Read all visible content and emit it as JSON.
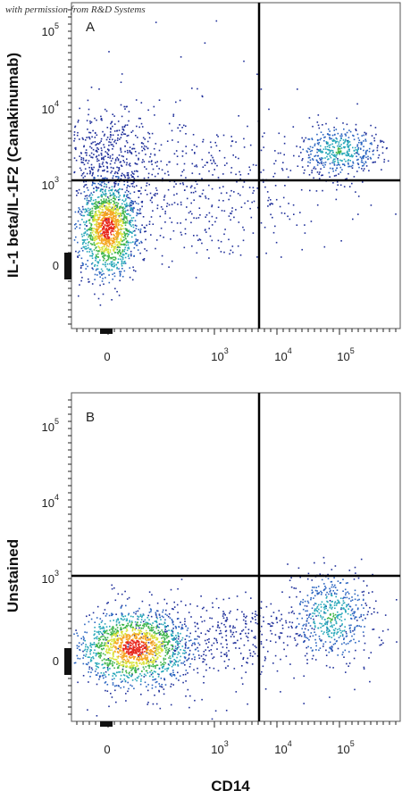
{
  "watermark": "with permission from R&D Systems",
  "x_axis_label": "CD14",
  "panels": [
    {
      "label": "A",
      "y_axis_label": "IL-1 beta/IL-1F2 (Canakinumab)",
      "y_ticks": [
        {
          "base": "10",
          "exp": "5"
        },
        {
          "base": "10",
          "exp": "4"
        },
        {
          "base": "10",
          "exp": "3"
        },
        {
          "base": "0"
        }
      ],
      "x_ticks": [
        {
          "base": "0"
        },
        {
          "base": "10",
          "exp": "3"
        },
        {
          "base": "10",
          "exp": "4"
        },
        {
          "base": "10",
          "exp": "5"
        }
      ]
    },
    {
      "label": "B",
      "y_axis_label": "Unstained",
      "y_ticks": [
        {
          "base": "10",
          "exp": "5"
        },
        {
          "base": "10",
          "exp": "4"
        },
        {
          "base": "10",
          "exp": "3"
        },
        {
          "base": "0"
        }
      ],
      "x_ticks": [
        {
          "base": "0"
        },
        {
          "base": "10",
          "exp": "3"
        },
        {
          "base": "10",
          "exp": "4"
        },
        {
          "base": "10",
          "exp": "5"
        }
      ]
    }
  ]
}
